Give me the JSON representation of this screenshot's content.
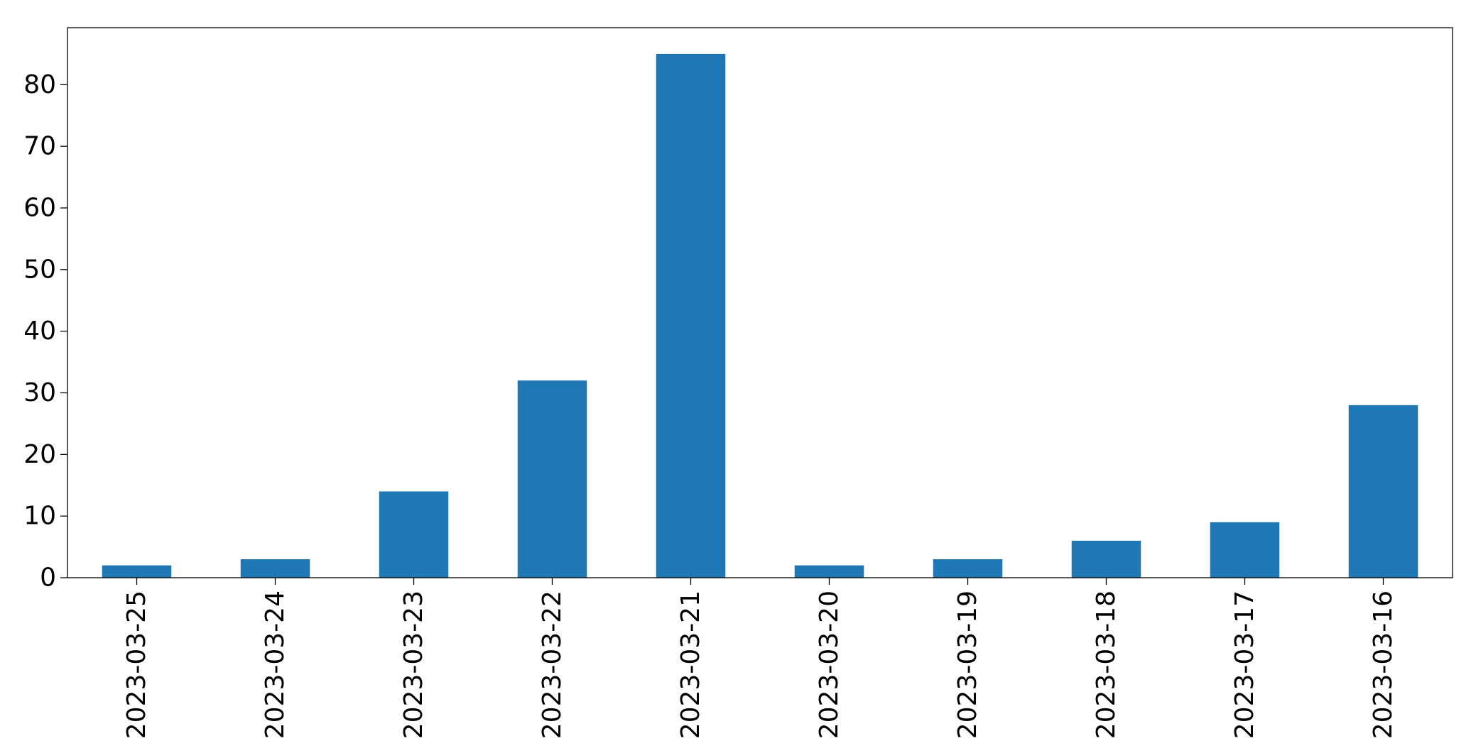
{
  "chart_data": {
    "type": "bar",
    "categories": [
      "2023-03-25",
      "2023-03-24",
      "2023-03-23",
      "2023-03-22",
      "2023-03-21",
      "2023-03-20",
      "2023-03-19",
      "2023-03-18",
      "2023-03-17",
      "2023-03-16"
    ],
    "values": [
      2,
      3,
      14,
      32,
      85,
      2,
      3,
      6,
      9,
      28
    ],
    "title": "",
    "xlabel": "",
    "ylabel": "",
    "ylim": [
      0,
      89.25
    ],
    "yticks": [
      0,
      10,
      20,
      30,
      40,
      50,
      60,
      70,
      80
    ],
    "grid": false,
    "legend": "none",
    "colors": {
      "bar": "#1f77b4",
      "axis": "#000000",
      "background": "#ffffff"
    }
  }
}
